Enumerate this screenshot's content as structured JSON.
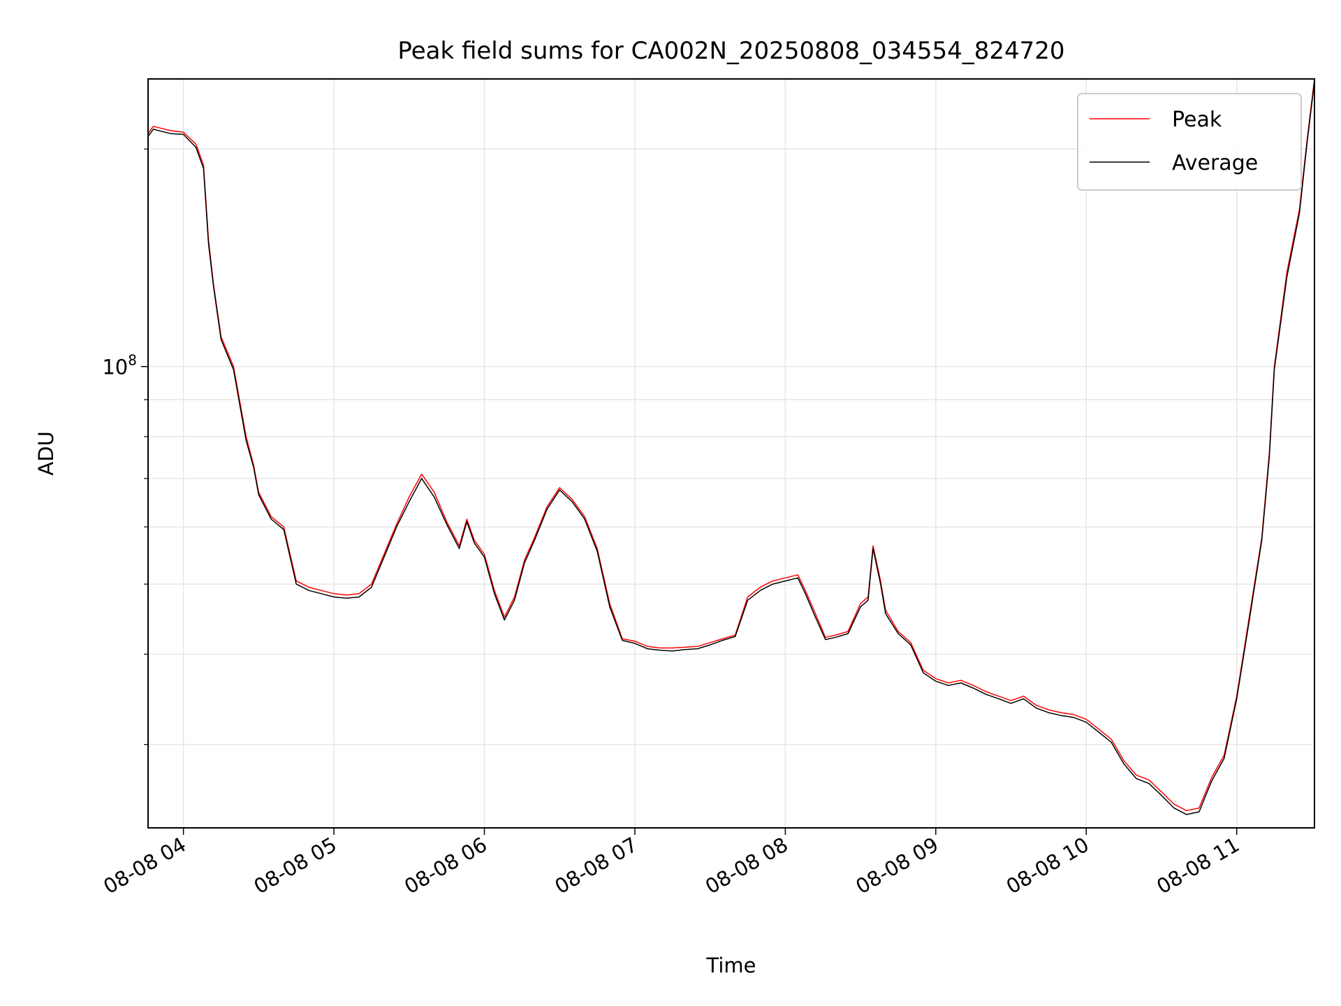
{
  "chart_data": {
    "type": "line",
    "title": "Peak field sums for CA002N_20250808_034554_824720",
    "xlabel": "Time",
    "ylabel": "ADU",
    "yscale": "log",
    "ylim": [
      23000000,
      250000000
    ],
    "xlim": [
      "08-08 03:45:54",
      "08-08 11:31:00"
    ],
    "grid": true,
    "legend_position": "top-right",
    "x_ticks": [
      {
        "value": "08-08 04:00",
        "label": "08-08 04"
      },
      {
        "value": "08-08 05:00",
        "label": "08-08 05"
      },
      {
        "value": "08-08 06:00",
        "label": "08-08 06"
      },
      {
        "value": "08-08 07:00",
        "label": "08-08 07"
      },
      {
        "value": "08-08 08:00",
        "label": "08-08 08"
      },
      {
        "value": "08-08 09:00",
        "label": "08-08 09"
      },
      {
        "value": "08-08 10:00",
        "label": "08-08 10"
      },
      {
        "value": "08-08 11:00",
        "label": "08-08 11"
      }
    ],
    "y_major_ticks": [
      {
        "value": 100000000,
        "label_base": "10",
        "label_exp": "8"
      }
    ],
    "y_minor_ticks": [
      30000000,
      40000000,
      50000000,
      60000000,
      70000000,
      80000000,
      90000000,
      200000000
    ],
    "series": [
      {
        "name": "Peak",
        "color": "#ff0000",
        "x": [
          "08-08 03:45:54",
          "08-08 03:48",
          "08-08 03:55",
          "08-08 04:00",
          "08-08 04:05",
          "08-08 04:08",
          "08-08 04:10",
          "08-08 04:12",
          "08-08 04:15",
          "08-08 04:20",
          "08-08 04:25",
          "08-08 04:28",
          "08-08 04:30",
          "08-08 04:35",
          "08-08 04:40",
          "08-08 04:45",
          "08-08 04:50",
          "08-08 04:55",
          "08-08 05:00",
          "08-08 05:05",
          "08-08 05:10",
          "08-08 05:15",
          "08-08 05:20",
          "08-08 05:25",
          "08-08 05:30",
          "08-08 05:35",
          "08-08 05:40",
          "08-08 05:45",
          "08-08 05:50",
          "08-08 05:53",
          "08-08 05:56",
          "08-08 06:00",
          "08-08 06:04",
          "08-08 06:08",
          "08-08 06:12",
          "08-08 06:16",
          "08-08 06:20",
          "08-08 06:25",
          "08-08 06:30",
          "08-08 06:35",
          "08-08 06:40",
          "08-08 06:45",
          "08-08 06:50",
          "08-08 06:55",
          "08-08 07:00",
          "08-08 07:05",
          "08-08 07:10",
          "08-08 07:15",
          "08-08 07:20",
          "08-08 07:25",
          "08-08 07:30",
          "08-08 07:35",
          "08-08 07:40",
          "08-08 07:45",
          "08-08 07:50",
          "08-08 07:55",
          "08-08 08:00",
          "08-08 08:05",
          "08-08 08:08",
          "08-08 08:12",
          "08-08 08:16",
          "08-08 08:20",
          "08-08 08:25",
          "08-08 08:30",
          "08-08 08:33",
          "08-08 08:35",
          "08-08 08:38",
          "08-08 08:40",
          "08-08 08:45",
          "08-08 08:50",
          "08-08 08:55",
          "08-08 09:00",
          "08-08 09:05",
          "08-08 09:10",
          "08-08 09:15",
          "08-08 09:20",
          "08-08 09:25",
          "08-08 09:30",
          "08-08 09:35",
          "08-08 09:40",
          "08-08 09:45",
          "08-08 09:50",
          "08-08 09:55",
          "08-08 10:00",
          "08-08 10:05",
          "08-08 10:10",
          "08-08 10:15",
          "08-08 10:20",
          "08-08 10:25",
          "08-08 10:30",
          "08-08 10:35",
          "08-08 10:40",
          "08-08 10:45",
          "08-08 10:50",
          "08-08 10:55",
          "08-08 11:00",
          "08-08 11:05",
          "08-08 11:10",
          "08-08 11:13",
          "08-08 11:15",
          "08-08 11:20",
          "08-08 11:25",
          "08-08 11:28",
          "08-08 11:31"
        ],
        "y": [
          210000000,
          215000000,
          212000000,
          211000000,
          203000000,
          190000000,
          150000000,
          130000000,
          110000000,
          100000000,
          80000000,
          73000000,
          67000000,
          62000000,
          60000000,
          50500000,
          49500000,
          49000000,
          48500000,
          48300000,
          48500000,
          50000000,
          55000000,
          60500000,
          66000000,
          71000000,
          67000000,
          61000000,
          56500000,
          61500000,
          57500000,
          55000000,
          49000000,
          45000000,
          48000000,
          54000000,
          58000000,
          64000000,
          68000000,
          65500000,
          62000000,
          56000000,
          47000000,
          42000000,
          41700000,
          41000000,
          40800000,
          40800000,
          40900000,
          41000000,
          41500000,
          42000000,
          42500000,
          48000000,
          49500000,
          50500000,
          51000000,
          51500000,
          49000000,
          45500000,
          42200000,
          42500000,
          43000000,
          47000000,
          48000000,
          56500000,
          50500000,
          46000000,
          43000000,
          41500000,
          38000000,
          37000000,
          36500000,
          36800000,
          36200000,
          35500000,
          35000000,
          34500000,
          35000000,
          34000000,
          33500000,
          33200000,
          33000000,
          32500000,
          31500000,
          30500000,
          28500000,
          27200000,
          26800000,
          25800000,
          24800000,
          24300000,
          24500000,
          27000000,
          29000000,
          35000000,
          45000000,
          58000000,
          76000000,
          100000000,
          135000000,
          165000000,
          205000000,
          250000000
        ]
      },
      {
        "name": "Average",
        "color": "#000000",
        "x": [
          "08-08 03:45:54",
          "08-08 03:48",
          "08-08 03:55",
          "08-08 04:00",
          "08-08 04:05",
          "08-08 04:08",
          "08-08 04:10",
          "08-08 04:12",
          "08-08 04:15",
          "08-08 04:20",
          "08-08 04:25",
          "08-08 04:28",
          "08-08 04:30",
          "08-08 04:35",
          "08-08 04:40",
          "08-08 04:45",
          "08-08 04:50",
          "08-08 04:55",
          "08-08 05:00",
          "08-08 05:05",
          "08-08 05:10",
          "08-08 05:15",
          "08-08 05:20",
          "08-08 05:25",
          "08-08 05:30",
          "08-08 05:35",
          "08-08 05:40",
          "08-08 05:45",
          "08-08 05:50",
          "08-08 05:53",
          "08-08 05:56",
          "08-08 06:00",
          "08-08 06:04",
          "08-08 06:08",
          "08-08 06:12",
          "08-08 06:16",
          "08-08 06:20",
          "08-08 06:25",
          "08-08 06:30",
          "08-08 06:35",
          "08-08 06:40",
          "08-08 06:45",
          "08-08 06:50",
          "08-08 06:55",
          "08-08 07:00",
          "08-08 07:05",
          "08-08 07:10",
          "08-08 07:15",
          "08-08 07:20",
          "08-08 07:25",
          "08-08 07:30",
          "08-08 07:35",
          "08-08 07:40",
          "08-08 07:45",
          "08-08 07:50",
          "08-08 07:55",
          "08-08 08:00",
          "08-08 08:05",
          "08-08 08:08",
          "08-08 08:12",
          "08-08 08:16",
          "08-08 08:20",
          "08-08 08:25",
          "08-08 08:30",
          "08-08 08:33",
          "08-08 08:35",
          "08-08 08:38",
          "08-08 08:40",
          "08-08 08:45",
          "08-08 08:50",
          "08-08 08:55",
          "08-08 09:00",
          "08-08 09:05",
          "08-08 09:10",
          "08-08 09:15",
          "08-08 09:20",
          "08-08 09:25",
          "08-08 09:30",
          "08-08 09:35",
          "08-08 09:40",
          "08-08 09:45",
          "08-08 09:50",
          "08-08 09:55",
          "08-08 10:00",
          "08-08 10:05",
          "08-08 10:10",
          "08-08 10:15",
          "08-08 10:20",
          "08-08 10:25",
          "08-08 10:30",
          "08-08 10:35",
          "08-08 10:40",
          "08-08 10:45",
          "08-08 10:50",
          "08-08 10:55",
          "08-08 11:00",
          "08-08 11:05",
          "08-08 11:10",
          "08-08 11:13",
          "08-08 11:15",
          "08-08 11:20",
          "08-08 11:25",
          "08-08 11:28",
          "08-08 11:31"
        ],
        "y": [
          208000000,
          213000000,
          210000000,
          209500000,
          201000000,
          188000000,
          148000000,
          129000000,
          109000000,
          99000000,
          79000000,
          72500000,
          66500000,
          61500000,
          59500000,
          50000000,
          49000000,
          48500000,
          48000000,
          47800000,
          48000000,
          49500000,
          54500000,
          60000000,
          65000000,
          70000000,
          66000000,
          60500000,
          56000000,
          61000000,
          57000000,
          54500000,
          48500000,
          44600000,
          47500000,
          53500000,
          57500000,
          63500000,
          67500000,
          65000000,
          61500000,
          55500000,
          46500000,
          41800000,
          41400000,
          40700000,
          40500000,
          40400000,
          40600000,
          40700000,
          41200000,
          41800000,
          42300000,
          47500000,
          49000000,
          50000000,
          50500000,
          51000000,
          48500000,
          45000000,
          41900000,
          42200000,
          42700000,
          46500000,
          47500000,
          56000000,
          50000000,
          45500000,
          42700000,
          41200000,
          37700000,
          36700000,
          36200000,
          36500000,
          35900000,
          35200000,
          34700000,
          34200000,
          34700000,
          33700000,
          33200000,
          32900000,
          32700000,
          32200000,
          31200000,
          30200000,
          28200000,
          26900000,
          26500000,
          25500000,
          24500000,
          24000000,
          24200000,
          26700000,
          28700000,
          34700000,
          44500000,
          57500000,
          75000000,
          99000000,
          133000000,
          163000000,
          203000000,
          248000000
        ]
      }
    ]
  }
}
